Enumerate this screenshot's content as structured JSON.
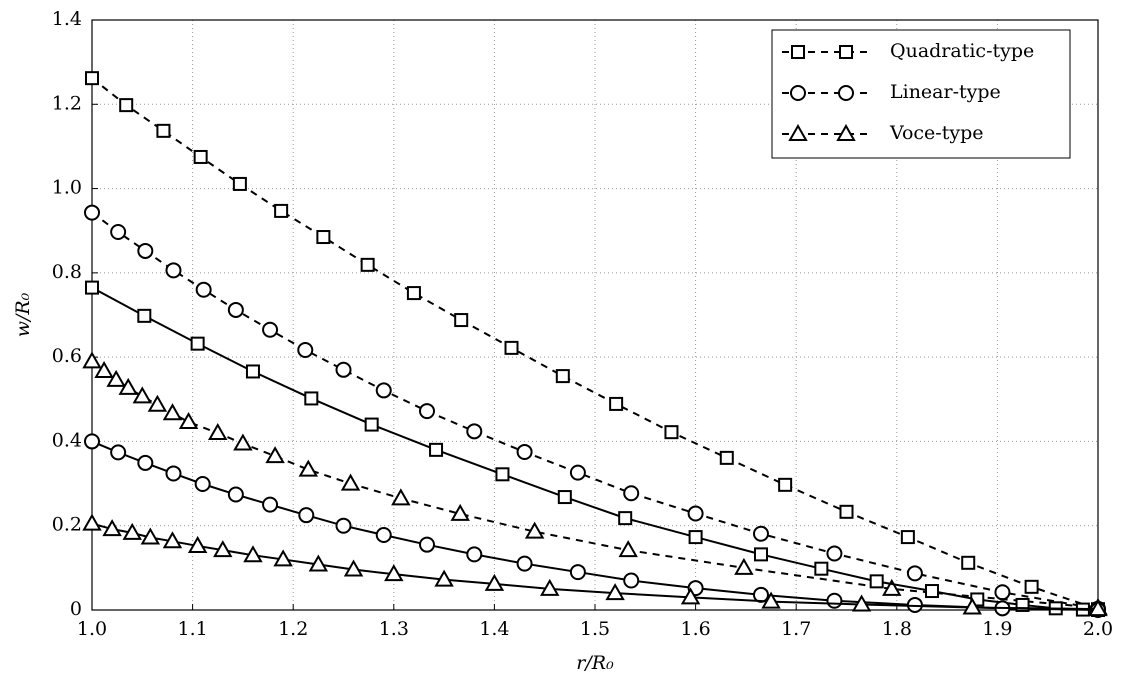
{
  "chart_data": {
    "type": "line",
    "xlabel": "r/R₀",
    "ylabel": "w/R₀",
    "xlim": [
      1.0,
      2.0
    ],
    "ylim": [
      0,
      1.4
    ],
    "xticks": [
      {
        "value": 1.0,
        "label": "1.0"
      },
      1.1,
      1.2,
      1.3,
      1.4,
      1.5,
      1.6,
      1.7,
      1.8,
      1.9,
      {
        "value": 2.0,
        "label": "2.0"
      }
    ],
    "yticks": [
      0,
      0.2,
      0.4,
      0.6,
      0.8,
      {
        "value": 1.0,
        "label": "1.0"
      },
      1.2,
      1.4
    ],
    "grid": true,
    "legend": "upper right",
    "series": [
      {
        "name": "Quadratic-type",
        "color": "#000000",
        "dashed": true,
        "marker": "square",
        "x": [
          1.0,
          1.034,
          1.071,
          1.108,
          1.147,
          1.188,
          1.23,
          1.274,
          1.32,
          1.367,
          1.417,
          1.468,
          1.521,
          1.576,
          1.631,
          1.689,
          1.75,
          1.811,
          1.871,
          1.934,
          2.0
        ],
        "values": [
          1.262,
          1.198,
          1.137,
          1.075,
          1.011,
          0.947,
          0.885,
          0.819,
          0.752,
          0.688,
          0.622,
          0.555,
          0.489,
          0.422,
          0.361,
          0.297,
          0.233,
          0.173,
          0.112,
          0.055,
          0.002
        ]
      },
      {
        "name": "Linear-type",
        "color": "#000000",
        "dashed": true,
        "marker": "circle",
        "x": [
          1.0,
          1.026,
          1.053,
          1.081,
          1.111,
          1.143,
          1.177,
          1.212,
          1.25,
          1.29,
          1.333,
          1.38,
          1.43,
          1.483,
          1.536,
          1.6,
          1.665,
          1.738,
          1.818,
          1.905,
          2.0
        ],
        "values": [
          0.943,
          0.897,
          0.852,
          0.806,
          0.76,
          0.712,
          0.665,
          0.617,
          0.57,
          0.521,
          0.472,
          0.424,
          0.375,
          0.326,
          0.277,
          0.229,
          0.181,
          0.134,
          0.087,
          0.042,
          0.003
        ]
      },
      {
        "name": "Voce-type",
        "color": "#000000",
        "dashed": true,
        "marker": "triangle",
        "x": [
          1.0,
          1.012,
          1.024,
          1.036,
          1.05,
          1.065,
          1.08,
          1.096,
          1.125,
          1.15,
          1.182,
          1.215,
          1.257,
          1.307,
          1.366,
          1.44,
          1.533,
          1.648,
          1.795,
          2.0
        ],
        "values": [
          0.59,
          0.567,
          0.546,
          0.527,
          0.507,
          0.487,
          0.467,
          0.446,
          0.42,
          0.395,
          0.365,
          0.333,
          0.3,
          0.265,
          0.228,
          0.186,
          0.142,
          0.1,
          0.05,
          0.005
        ]
      },
      {
        "color": "#000000",
        "dashed": false,
        "marker": "square",
        "x": [
          1.0,
          1.052,
          1.105,
          1.16,
          1.218,
          1.278,
          1.342,
          1.408,
          1.47,
          1.53,
          1.6,
          1.665,
          1.725,
          1.78,
          1.835,
          1.88,
          1.925,
          1.958,
          1.985,
          2.0
        ],
        "values": [
          0.765,
          0.698,
          0.632,
          0.566,
          0.502,
          0.44,
          0.38,
          0.322,
          0.268,
          0.218,
          0.173,
          0.132,
          0.098,
          0.068,
          0.045,
          0.025,
          0.012,
          0.004,
          0.001,
          0
        ]
      },
      {
        "color": "#000000",
        "dashed": false,
        "marker": "circle",
        "x": [
          1.0,
          1.026,
          1.053,
          1.081,
          1.11,
          1.143,
          1.177,
          1.213,
          1.25,
          1.29,
          1.333,
          1.38,
          1.43,
          1.483,
          1.536,
          1.6,
          1.665,
          1.738,
          1.818,
          1.905,
          2.0
        ],
        "values": [
          0.4,
          0.374,
          0.349,
          0.324,
          0.299,
          0.274,
          0.25,
          0.225,
          0.2,
          0.178,
          0.155,
          0.132,
          0.11,
          0.09,
          0.07,
          0.052,
          0.036,
          0.022,
          0.012,
          0.004,
          0
        ]
      },
      {
        "color": "#000000",
        "dashed": false,
        "marker": "triangle",
        "x": [
          1.0,
          1.02,
          1.04,
          1.058,
          1.08,
          1.105,
          1.13,
          1.16,
          1.19,
          1.225,
          1.26,
          1.3,
          1.35,
          1.4,
          1.455,
          1.52,
          1.595,
          1.675,
          1.765,
          1.875,
          2.0
        ],
        "values": [
          0.205,
          0.192,
          0.183,
          0.172,
          0.163,
          0.152,
          0.142,
          0.13,
          0.12,
          0.108,
          0.096,
          0.085,
          0.072,
          0.062,
          0.05,
          0.04,
          0.03,
          0.02,
          0.013,
          0.006,
          0.002
        ]
      }
    ]
  }
}
